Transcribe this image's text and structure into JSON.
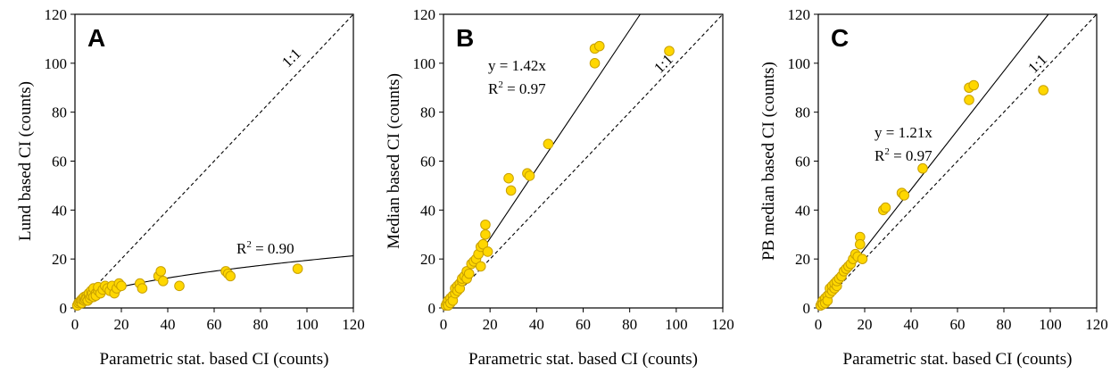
{
  "style": {
    "point_fill": "#FFD700",
    "point_stroke": "#C8A000",
    "axis_color": "#000000"
  },
  "chart_data": [
    {
      "type": "scatter",
      "panel_letter": "A",
      "xlabel": "Parametric stat. based CI (counts)",
      "ylabel": "Lund based CI (counts)",
      "xlim": [
        0,
        120
      ],
      "ylim": [
        0,
        120
      ],
      "xticks": [
        "0",
        "20",
        "40",
        "60",
        "80",
        "100",
        "120"
      ],
      "yticks": [
        "0",
        "20",
        "40",
        "60",
        "80",
        "100",
        "120"
      ],
      "reference_label": "1:1",
      "fit": {
        "kind": "power",
        "coef": 1.9,
        "exponent": 0.505,
        "equation": "",
        "r2_label": "R",
        "r2_value": " = 0.90"
      },
      "points": [
        [
          1,
          1
        ],
        [
          1.5,
          2
        ],
        [
          2,
          2.5
        ],
        [
          2.5,
          3
        ],
        [
          3,
          2
        ],
        [
          3,
          3.5
        ],
        [
          3.5,
          4
        ],
        [
          4,
          3
        ],
        [
          4,
          4.5
        ],
        [
          4.5,
          3.5
        ],
        [
          5,
          5
        ],
        [
          5,
          4
        ],
        [
          5.5,
          3
        ],
        [
          6,
          5
        ],
        [
          6,
          6
        ],
        [
          6.5,
          4
        ],
        [
          7,
          5
        ],
        [
          7,
          7
        ],
        [
          7.5,
          6
        ],
        [
          8,
          4.5
        ],
        [
          8,
          8
        ],
        [
          9,
          6
        ],
        [
          9,
          5
        ],
        [
          10,
          7
        ],
        [
          10,
          8.5
        ],
        [
          11,
          6
        ],
        [
          12,
          7.5
        ],
        [
          13,
          9
        ],
        [
          14,
          8
        ],
        [
          15,
          7
        ],
        [
          16,
          9
        ],
        [
          17,
          6
        ],
        [
          18,
          8
        ],
        [
          19,
          10
        ],
        [
          20,
          9
        ],
        [
          28,
          10
        ],
        [
          29,
          8
        ],
        [
          36,
          13
        ],
        [
          37,
          15
        ],
        [
          38,
          11
        ],
        [
          45,
          9
        ],
        [
          65,
          15
        ],
        [
          66,
          14
        ],
        [
          67,
          13
        ],
        [
          96,
          16
        ]
      ]
    },
    {
      "type": "scatter",
      "panel_letter": "B",
      "xlabel": "Parametric stat. based CI (counts)",
      "ylabel": "Median based CI (counts)",
      "xlim": [
        0,
        120
      ],
      "ylim": [
        0,
        120
      ],
      "xticks": [
        "0",
        "20",
        "40",
        "60",
        "80",
        "100",
        "120"
      ],
      "yticks": [
        "0",
        "20",
        "40",
        "60",
        "80",
        "100",
        "120"
      ],
      "reference_label": "1:1",
      "fit": {
        "kind": "linear",
        "slope": 1.42,
        "equation": "y = 1.42x",
        "r2_label": "R",
        "r2_value": " = 0.97"
      },
      "points": [
        [
          1,
          1
        ],
        [
          1.5,
          2
        ],
        [
          2,
          3
        ],
        [
          2,
          1
        ],
        [
          3,
          4
        ],
        [
          3,
          2
        ],
        [
          4,
          5
        ],
        [
          4,
          3
        ],
        [
          5,
          6
        ],
        [
          5,
          8
        ],
        [
          6,
          9
        ],
        [
          6,
          7
        ],
        [
          7,
          10
        ],
        [
          7,
          8
        ],
        [
          8,
          11
        ],
        [
          8,
          12
        ],
        [
          9,
          13
        ],
        [
          10,
          15
        ],
        [
          10,
          12
        ],
        [
          11,
          14
        ],
        [
          12,
          18
        ],
        [
          13,
          19
        ],
        [
          14,
          20
        ],
        [
          15,
          22
        ],
        [
          16,
          25
        ],
        [
          16,
          17
        ],
        [
          17,
          26
        ],
        [
          18,
          34
        ],
        [
          18,
          30
        ],
        [
          19,
          23
        ],
        [
          28,
          53
        ],
        [
          29,
          48
        ],
        [
          36,
          55
        ],
        [
          37,
          54
        ],
        [
          45,
          67
        ],
        [
          65,
          100
        ],
        [
          65,
          106
        ],
        [
          67,
          107
        ],
        [
          97,
          105
        ]
      ]
    },
    {
      "type": "scatter",
      "panel_letter": "C",
      "xlabel": "Parametric stat. based CI (counts)",
      "ylabel": "PB median based CI  (counts)",
      "xlim": [
        0,
        120
      ],
      "ylim": [
        0,
        120
      ],
      "xticks": [
        "0",
        "20",
        "40",
        "60",
        "80",
        "100",
        "120"
      ],
      "yticks": [
        "0",
        "20",
        "40",
        "60",
        "80",
        "100",
        "120"
      ],
      "reference_label": "1:1",
      "fit": {
        "kind": "linear",
        "slope": 1.21,
        "equation": "y = 1.21x",
        "r2_label": "R",
        "r2_value": " = 0.97"
      },
      "points": [
        [
          1,
          1
        ],
        [
          1.5,
          2
        ],
        [
          2,
          3
        ],
        [
          2,
          1.5
        ],
        [
          3,
          4
        ],
        [
          3,
          2
        ],
        [
          4,
          5
        ],
        [
          4,
          3
        ],
        [
          5,
          6
        ],
        [
          5,
          8
        ],
        [
          6,
          7
        ],
        [
          6,
          9
        ],
        [
          7,
          8
        ],
        [
          7,
          10
        ],
        [
          8,
          9
        ],
        [
          8,
          11
        ],
        [
          9,
          12
        ],
        [
          10,
          13
        ],
        [
          11,
          15
        ],
        [
          12,
          16
        ],
        [
          13,
          17
        ],
        [
          14,
          18
        ],
        [
          15,
          20
        ],
        [
          16,
          22
        ],
        [
          17,
          21
        ],
        [
          18,
          29
        ],
        [
          18,
          26
        ],
        [
          19,
          20
        ],
        [
          28,
          40
        ],
        [
          29,
          41
        ],
        [
          36,
          47
        ],
        [
          37,
          46
        ],
        [
          45,
          57
        ],
        [
          65,
          85
        ],
        [
          65,
          90
        ],
        [
          67,
          91
        ],
        [
          97,
          89
        ]
      ]
    }
  ]
}
